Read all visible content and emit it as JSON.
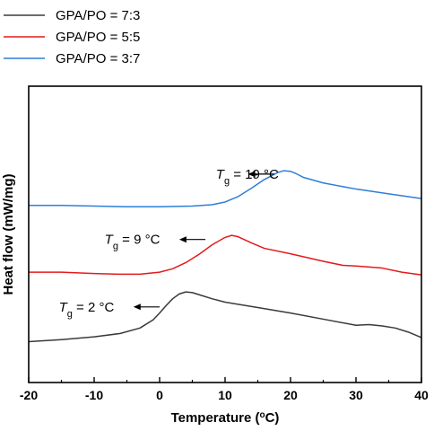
{
  "chart_data": {
    "type": "line",
    "title": "",
    "xlabel": "Temperature (°C)",
    "xlabel_parts": {
      "main": "Temperature (",
      "sup": "o",
      "end": "C)"
    },
    "ylabel": "Heat flow (mW/mg)",
    "xlim": [
      -20,
      40
    ],
    "xticks": [
      -20,
      -10,
      0,
      10,
      20,
      30,
      40
    ],
    "xtick_labels": [
      "-20",
      "-10",
      "0",
      "10",
      "20",
      "30",
      "40"
    ],
    "y_ticks_shown": false,
    "grid": false,
    "legend_position": "top-left",
    "series": [
      {
        "name": "GPA/PO = 7:3",
        "color": "#3a3a3a",
        "x": [
          -20,
          -15,
          -10,
          -6,
          -3,
          -1,
          0,
          1,
          2,
          3,
          4,
          5,
          6,
          8,
          10,
          15,
          20,
          25,
          30,
          32,
          34,
          36,
          38,
          40
        ],
        "y": [
          0.1,
          0.13,
          0.17,
          0.22,
          0.3,
          0.42,
          0.52,
          0.63,
          0.73,
          0.8,
          0.83,
          0.82,
          0.79,
          0.73,
          0.68,
          0.6,
          0.52,
          0.43,
          0.34,
          0.35,
          0.33,
          0.3,
          0.24,
          0.16
        ]
      },
      {
        "name": "GPA/PO = 5:5",
        "color": "#e41a1c",
        "x": [
          -20,
          -15,
          -10,
          -6,
          -3,
          0,
          2,
          4,
          6,
          8,
          10,
          11,
          12,
          14,
          16,
          20,
          25,
          28,
          30,
          34,
          37,
          40
        ],
        "y": [
          1.12,
          1.12,
          1.1,
          1.09,
          1.09,
          1.12,
          1.17,
          1.26,
          1.38,
          1.52,
          1.63,
          1.66,
          1.64,
          1.55,
          1.47,
          1.39,
          1.28,
          1.22,
          1.21,
          1.18,
          1.12,
          1.08
        ]
      },
      {
        "name": "GPA/PO = 3:7",
        "color": "#2f7ed8",
        "x": [
          -20,
          -15,
          -10,
          -5,
          0,
          5,
          8,
          10,
          12,
          14,
          16,
          18,
          19,
          20,
          21,
          22,
          25,
          30,
          35,
          40
        ],
        "y": [
          2.1,
          2.1,
          2.09,
          2.08,
          2.08,
          2.09,
          2.11,
          2.15,
          2.23,
          2.35,
          2.48,
          2.58,
          2.61,
          2.6,
          2.56,
          2.51,
          2.43,
          2.34,
          2.27,
          2.2
        ]
      }
    ],
    "annotations": [
      {
        "text_main": "T",
        "text_sub": "g",
        "text_end": " = 19 °C",
        "x": 8.6,
        "y": 2.56,
        "arrow_from_x": 17.5,
        "arrow_to_x": 13.5
      },
      {
        "text_main": "T",
        "text_sub": "g",
        "text_end": " = 9 °C",
        "x": -8.4,
        "y": 1.6,
        "arrow_from_x": 7.0,
        "arrow_to_x": 3.0
      },
      {
        "text_main": "T",
        "text_sub": "g",
        "text_end": " = 2 °C",
        "x": -15.4,
        "y": 0.61,
        "arrow_from_x": 0.0,
        "arrow_to_x": -4.0
      }
    ]
  }
}
